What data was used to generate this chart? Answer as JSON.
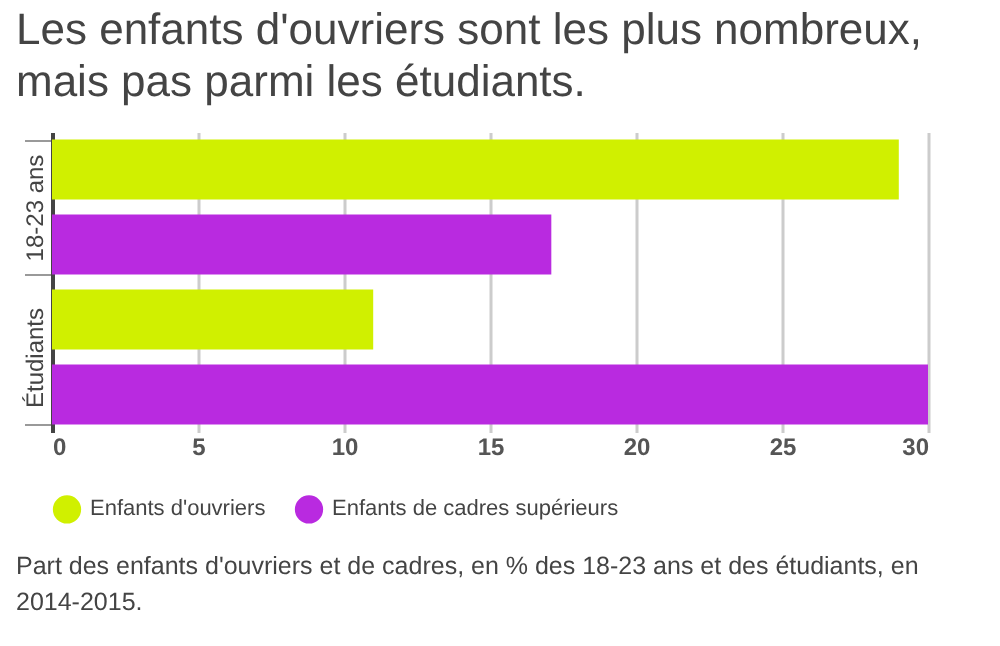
{
  "chart_data": {
    "type": "bar",
    "orientation": "horizontal",
    "title": "Les enfants d'ouvriers sont les plus nombreux, mais pas parmi les étudiants.",
    "categories": [
      "18-23 ans",
      "Étudiants"
    ],
    "series": [
      {
        "name": "Enfants d'ouvriers",
        "color": "#d0f000",
        "values": [
          29.0,
          11.0
        ]
      },
      {
        "name": "Enfants de cadres supérieurs",
        "color": "#b92ae0",
        "values": [
          17.1,
          30.0
        ]
      }
    ],
    "xlim": [
      0,
      30
    ],
    "xticks": [
      0,
      5,
      10,
      15,
      20,
      25,
      30
    ],
    "grid": "x",
    "legend": "bottom",
    "annotations": [
      "Part des enfants d'ouvriers et de cadres, en % des 18-23 ans et des étudiants, en 2014-2015."
    ]
  }
}
